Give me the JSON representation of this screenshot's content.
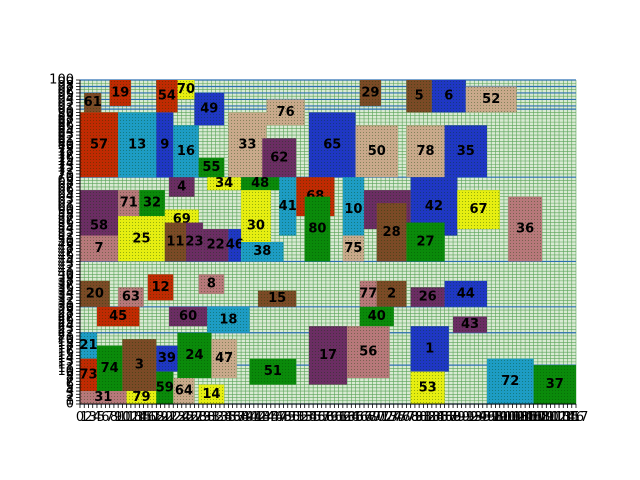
{
  "board": {
    "x_range": [
      0,
      117
    ],
    "y_range": [
      0,
      100
    ],
    "x_tick_step": 1,
    "y_tick_step": 1,
    "background_color": "#d9ead3",
    "grid_color": "#2e8b2e",
    "frame_color": "#2b6fb3",
    "band_lines_y": [
      0,
      12,
      22,
      30,
      44,
      70,
      91,
      92,
      94,
      96,
      98,
      100
    ]
  },
  "palette": {
    "brown": "#7b4a26",
    "navy": "#1f37c4",
    "cyan": "#1d9cc4",
    "rose": "#b7787a",
    "green": "#0a8a0a",
    "red": "#c02a02",
    "purple": "#6b2d63",
    "yellow": "#e6ee11",
    "tan": "#c9a98b"
  },
  "chart_data": {
    "type": "table",
    "title": "",
    "xlabel": "",
    "ylabel": "",
    "xlim": [
      0,
      117
    ],
    "ylim": [
      0,
      100
    ],
    "tiles": [
      {
        "label": "61",
        "x": 1,
        "y": 90,
        "w": 4,
        "h": 6,
        "color": "brown"
      },
      {
        "label": "19",
        "x": 7,
        "y": 92,
        "w": 5,
        "h": 8,
        "color": "red"
      },
      {
        "label": "54",
        "x": 18,
        "y": 90,
        "w": 5,
        "h": 10,
        "color": "red"
      },
      {
        "label": "70",
        "x": 23,
        "y": 94,
        "w": 4,
        "h": 6,
        "color": "yellow"
      },
      {
        "label": "49",
        "x": 27,
        "y": 86,
        "w": 7,
        "h": 10,
        "color": "navy"
      },
      {
        "label": "76",
        "x": 44,
        "y": 86,
        "w": 9,
        "h": 8,
        "color": "tan"
      },
      {
        "label": "29",
        "x": 66,
        "y": 92,
        "w": 5,
        "h": 8,
        "color": "brown"
      },
      {
        "label": "5",
        "x": 77,
        "y": 90,
        "w": 6,
        "h": 10,
        "color": "brown"
      },
      {
        "label": "6",
        "x": 83,
        "y": 90,
        "w": 8,
        "h": 10,
        "color": "navy"
      },
      {
        "label": "52",
        "x": 91,
        "y": 90,
        "w": 12,
        "h": 8,
        "color": "tan"
      },
      {
        "label": "57",
        "x": 0,
        "y": 70,
        "w": 9,
        "h": 20,
        "color": "red"
      },
      {
        "label": "13",
        "x": 9,
        "y": 70,
        "w": 9,
        "h": 20,
        "color": "cyan"
      },
      {
        "label": "9",
        "x": 18,
        "y": 70,
        "w": 4,
        "h": 20,
        "color": "navy"
      },
      {
        "label": "16",
        "x": 22,
        "y": 70,
        "w": 6,
        "h": 16,
        "color": "cyan"
      },
      {
        "label": "55",
        "x": 28,
        "y": 70,
        "w": 6,
        "h": 6,
        "color": "green"
      },
      {
        "label": "33",
        "x": 35,
        "y": 70,
        "w": 9,
        "h": 20,
        "color": "tan"
      },
      {
        "label": "62",
        "x": 43,
        "y": 70,
        "w": 8,
        "h": 12,
        "color": "purple"
      },
      {
        "label": "65",
        "x": 54,
        "y": 70,
        "w": 11,
        "h": 20,
        "color": "navy"
      },
      {
        "label": "50",
        "x": 65,
        "y": 70,
        "w": 10,
        "h": 16,
        "color": "tan"
      },
      {
        "label": "78",
        "x": 77,
        "y": 70,
        "w": 9,
        "h": 16,
        "color": "tan"
      },
      {
        "label": "35",
        "x": 86,
        "y": 70,
        "w": 10,
        "h": 16,
        "color": "navy"
      },
      {
        "label": "4",
        "x": 21,
        "y": 64,
        "w": 6,
        "h": 6,
        "color": "purple"
      },
      {
        "label": "34",
        "x": 30,
        "y": 66,
        "w": 8,
        "h": 4,
        "color": "yellow"
      },
      {
        "label": "48",
        "x": 38,
        "y": 66,
        "w": 9,
        "h": 4,
        "color": "green"
      },
      {
        "label": "68",
        "x": 51,
        "y": 58,
        "w": 9,
        "h": 12,
        "color": "red"
      },
      {
        "label": "58",
        "x": 0,
        "y": 44,
        "w": 9,
        "h": 22,
        "color": "purple"
      },
      {
        "label": "71",
        "x": 9,
        "y": 58,
        "w": 5,
        "h": 8,
        "color": "rose"
      },
      {
        "label": "32",
        "x": 14,
        "y": 58,
        "w": 6,
        "h": 8,
        "color": "green"
      },
      {
        "label": "69",
        "x": 20,
        "y": 54,
        "w": 8,
        "h": 6,
        "color": "yellow"
      },
      {
        "label": "30",
        "x": 38,
        "y": 44,
        "w": 7,
        "h": 22,
        "color": "yellow"
      },
      {
        "label": "41",
        "x": 47,
        "y": 52,
        "w": 4,
        "h": 18,
        "color": "cyan"
      },
      {
        "label": "10",
        "x": 62,
        "y": 50,
        "w": 5,
        "h": 20,
        "color": "cyan"
      },
      {
        "label": "66",
        "x": 67,
        "y": 54,
        "w": 11,
        "h": 12,
        "color": "purple"
      },
      {
        "label": "42",
        "x": 78,
        "y": 52,
        "w": 11,
        "h": 18,
        "color": "navy"
      },
      {
        "label": "67",
        "x": 89,
        "y": 54,
        "w": 10,
        "h": 12,
        "color": "yellow"
      },
      {
        "label": "7",
        "x": 0,
        "y": 44,
        "w": 9,
        "h": 8,
        "color": "rose"
      },
      {
        "label": "25",
        "x": 9,
        "y": 44,
        "w": 11,
        "h": 14,
        "color": "yellow"
      },
      {
        "label": "11",
        "x": 20,
        "y": 44,
        "w": 5,
        "h": 12,
        "color": "brown"
      },
      {
        "label": "23",
        "x": 25,
        "y": 44,
        "w": 4,
        "h": 12,
        "color": "purple"
      },
      {
        "label": "22",
        "x": 29,
        "y": 44,
        "w": 6,
        "h": 10,
        "color": "purple"
      },
      {
        "label": "46",
        "x": 35,
        "y": 44,
        "w": 3,
        "h": 10,
        "color": "navy"
      },
      {
        "label": "38",
        "x": 38,
        "y": 44,
        "w": 10,
        "h": 6,
        "color": "cyan"
      },
      {
        "label": "80",
        "x": 53,
        "y": 44,
        "w": 6,
        "h": 20,
        "color": "green"
      },
      {
        "label": "75",
        "x": 62,
        "y": 44,
        "w": 5,
        "h": 8,
        "color": "tan"
      },
      {
        "label": "28",
        "x": 70,
        "y": 44,
        "w": 7,
        "h": 18,
        "color": "brown"
      },
      {
        "label": "27",
        "x": 77,
        "y": 44,
        "w": 9,
        "h": 12,
        "color": "green"
      },
      {
        "label": "36",
        "x": 101,
        "y": 44,
        "w": 8,
        "h": 20,
        "color": "rose"
      },
      {
        "label": "20",
        "x": 0,
        "y": 30,
        "w": 7,
        "h": 8,
        "color": "brown"
      },
      {
        "label": "63",
        "x": 9,
        "y": 30,
        "w": 6,
        "h": 6,
        "color": "rose"
      },
      {
        "label": "12",
        "x": 16,
        "y": 32,
        "w": 6,
        "h": 8,
        "color": "red"
      },
      {
        "label": "8",
        "x": 28,
        "y": 34,
        "w": 6,
        "h": 6,
        "color": "rose"
      },
      {
        "label": "15",
        "x": 42,
        "y": 30,
        "w": 9,
        "h": 5,
        "color": "brown"
      },
      {
        "label": "77",
        "x": 66,
        "y": 30,
        "w": 4,
        "h": 8,
        "color": "rose"
      },
      {
        "label": "2",
        "x": 70,
        "y": 30,
        "w": 7,
        "h": 8,
        "color": "brown"
      },
      {
        "label": "26",
        "x": 78,
        "y": 30,
        "w": 8,
        "h": 6,
        "color": "purple"
      },
      {
        "label": "44",
        "x": 86,
        "y": 30,
        "w": 10,
        "h": 8,
        "color": "navy"
      },
      {
        "label": "45",
        "x": 4,
        "y": 24,
        "w": 10,
        "h": 6,
        "color": "red"
      },
      {
        "label": "60",
        "x": 21,
        "y": 24,
        "w": 9,
        "h": 6,
        "color": "purple"
      },
      {
        "label": "18",
        "x": 30,
        "y": 22,
        "w": 10,
        "h": 8,
        "color": "cyan"
      },
      {
        "label": "40",
        "x": 66,
        "y": 24,
        "w": 8,
        "h": 6,
        "color": "green"
      },
      {
        "label": "43",
        "x": 88,
        "y": 22,
        "w": 8,
        "h": 5,
        "color": "purple"
      },
      {
        "label": "21",
        "x": 0,
        "y": 14,
        "w": 4,
        "h": 8,
        "color": "cyan"
      },
      {
        "label": "73",
        "x": 0,
        "y": 4,
        "w": 4,
        "h": 10,
        "color": "red"
      },
      {
        "label": "74",
        "x": 4,
        "y": 4,
        "w": 6,
        "h": 14,
        "color": "green"
      },
      {
        "label": "3",
        "x": 10,
        "y": 4,
        "w": 8,
        "h": 16,
        "color": "brown"
      },
      {
        "label": "39",
        "x": 18,
        "y": 10,
        "w": 5,
        "h": 8,
        "color": "navy"
      },
      {
        "label": "24",
        "x": 23,
        "y": 8,
        "w": 8,
        "h": 14,
        "color": "green"
      },
      {
        "label": "47",
        "x": 31,
        "y": 8,
        "w": 6,
        "h": 12,
        "color": "tan"
      },
      {
        "label": "51",
        "x": 40,
        "y": 6,
        "w": 11,
        "h": 8,
        "color": "green"
      },
      {
        "label": "17",
        "x": 54,
        "y": 6,
        "w": 9,
        "h": 18,
        "color": "purple"
      },
      {
        "label": "56",
        "x": 63,
        "y": 8,
        "w": 10,
        "h": 16,
        "color": "rose"
      },
      {
        "label": "1",
        "x": 78,
        "y": 10,
        "w": 9,
        "h": 14,
        "color": "navy"
      },
      {
        "label": "31",
        "x": 0,
        "y": 0,
        "w": 11,
        "h": 4,
        "color": "rose"
      },
      {
        "label": "79",
        "x": 11,
        "y": 0,
        "w": 7,
        "h": 4,
        "color": "yellow"
      },
      {
        "label": "59",
        "x": 18,
        "y": 0,
        "w": 4,
        "h": 10,
        "color": "green"
      },
      {
        "label": "64",
        "x": 22,
        "y": 0,
        "w": 5,
        "h": 8,
        "color": "tan"
      },
      {
        "label": "14",
        "x": 28,
        "y": 0,
        "w": 6,
        "h": 6,
        "color": "yellow"
      },
      {
        "label": "53",
        "x": 78,
        "y": 0,
        "w": 8,
        "h": 10,
        "color": "yellow"
      },
      {
        "label": "72",
        "x": 96,
        "y": 0,
        "w": 11,
        "h": 14,
        "color": "cyan"
      },
      {
        "label": "37",
        "x": 107,
        "y": 0,
        "w": 10,
        "h": 12,
        "color": "green"
      }
    ]
  }
}
